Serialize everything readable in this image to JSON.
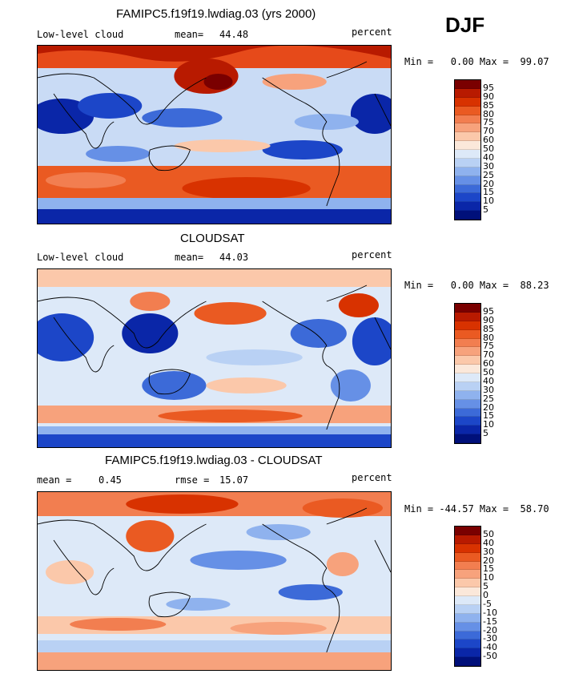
{
  "season": "DJF",
  "panels": [
    {
      "title": "FAMIPC5.f19f19.lwdiag.03 (yrs 2000)",
      "left_label": "Low-level cloud",
      "stat1_label": "mean=",
      "stat1_value": "44.48",
      "stat2_label": "",
      "stat2_value": "",
      "units": "percent",
      "range_text": "Min =   0.00 Max =  99.07",
      "colorbar_labels": [
        "95",
        "90",
        "85",
        "80",
        "75",
        "70",
        "60",
        "50",
        "40",
        "30",
        "25",
        "20",
        "15",
        "10",
        "5"
      ]
    },
    {
      "title": "CLOUDSAT",
      "left_label": "Low-level cloud",
      "stat1_label": "mean=",
      "stat1_value": "44.03",
      "stat2_label": "",
      "stat2_value": "",
      "units": "percent",
      "range_text": "Min =   0.00 Max =  88.23",
      "colorbar_labels": [
        "95",
        "90",
        "85",
        "80",
        "75",
        "70",
        "60",
        "50",
        "40",
        "30",
        "25",
        "20",
        "15",
        "10",
        "5"
      ]
    },
    {
      "title": "FAMIPC5.f19f19.lwdiag.03 - CLOUDSAT",
      "left_label": "mean =",
      "stat1_label": "",
      "stat1_value": "0.45",
      "stat2_label": "rmse =",
      "stat2_value": "15.07",
      "units": "percent",
      "range_text": "Min = -44.57 Max =  58.70",
      "colorbar_labels": [
        "50",
        "40",
        "30",
        "20",
        "15",
        "10",
        "5",
        "0",
        "-5",
        "-10",
        "-15",
        "-20",
        "-30",
        "-40",
        "-50"
      ]
    }
  ],
  "colorbar_colors": [
    "#7a0000",
    "#b81a00",
    "#d83200",
    "#ea5a22",
    "#f27e50",
    "#f7a27c",
    "#fbc8aa",
    "#fbe8da",
    "#dde9f8",
    "#b9d1f4",
    "#8fb2ee",
    "#6690e6",
    "#3c6ad8",
    "#1c46c8",
    "#0a26a8",
    "#00107a"
  ]
}
